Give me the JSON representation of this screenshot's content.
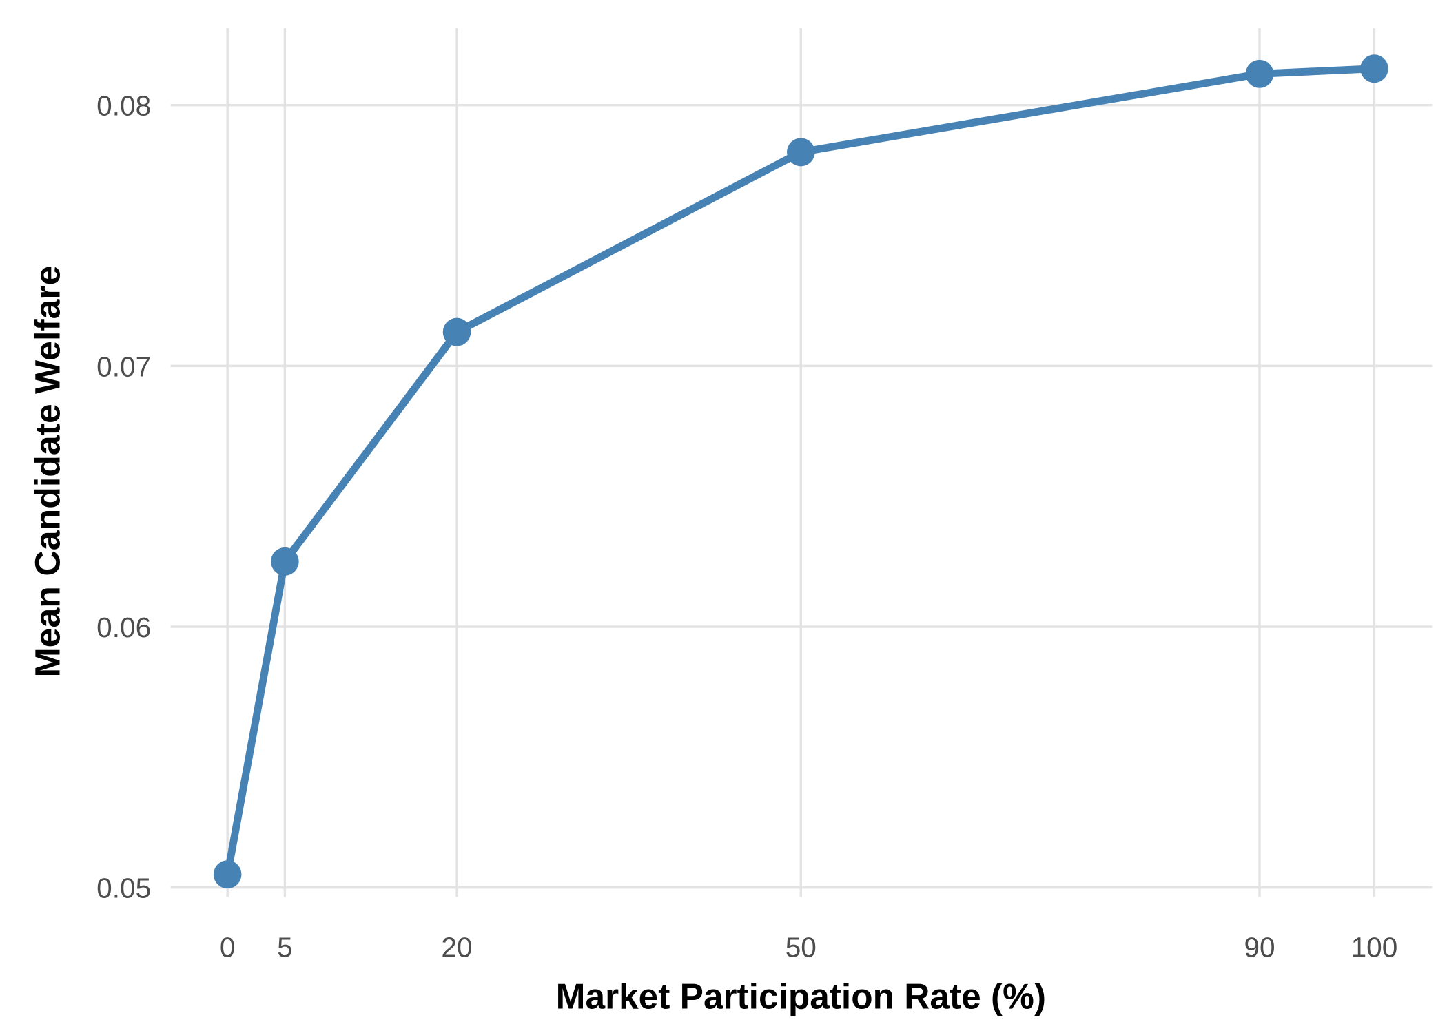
{
  "chart_data": {
    "type": "line",
    "title": "",
    "xlabel": "Market Participation Rate (%)",
    "ylabel": "Mean Candidate Welfare",
    "x": [
      0,
      5,
      20,
      50,
      90,
      100
    ],
    "series": [
      {
        "name": "Mean Candidate Welfare",
        "values": [
          0.0505,
          0.0625,
          0.0713,
          0.0782,
          0.0812,
          0.0814
        ],
        "color": "#4682B4"
      }
    ],
    "xticks": [
      0,
      5,
      20,
      50,
      90,
      100
    ],
    "xtick_labels": [
      "0",
      "5",
      "20",
      "50",
      "90",
      "100"
    ],
    "yticks": [
      0.05,
      0.06,
      0.07,
      0.08
    ],
    "ytick_labels": [
      "0.05",
      "0.06",
      "0.07",
      "0.08"
    ],
    "xlim": [
      -5,
      105
    ],
    "ylim": [
      0.0485,
      0.0829
    ],
    "grid": true,
    "legend": "none"
  }
}
